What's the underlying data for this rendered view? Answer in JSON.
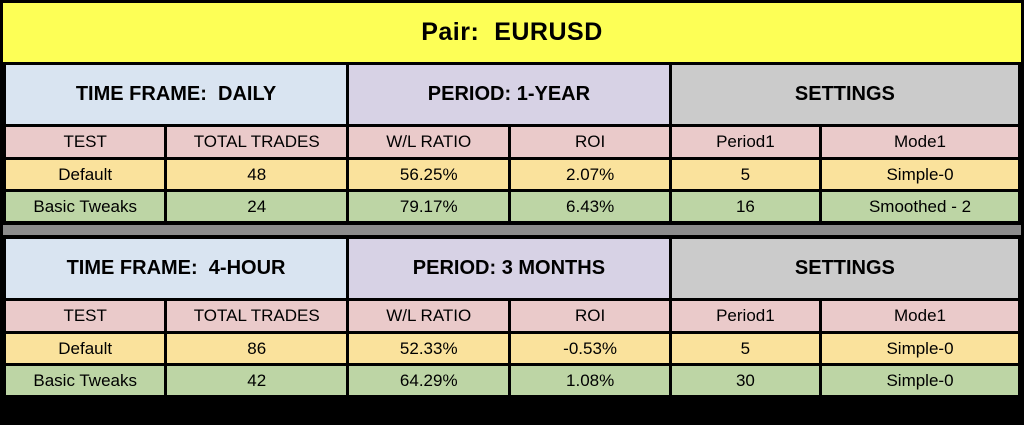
{
  "title": "Pair:  EURUSD",
  "colors": {
    "banner_bg": "#FDFF56",
    "time_frame_bg": "#D9E4F1",
    "period_bg": "#D7D2E5",
    "settings_bg": "#CBCBCB",
    "column_header_bg": "#EACACA",
    "default_row_bg": "#FAE29C",
    "tweaks_row_bg": "#BDD5A5",
    "divider_bg": "#8C8C8C",
    "border": "#000000"
  },
  "tables": [
    {
      "time_frame": "TIME FRAME:  DAILY",
      "period": "PERIOD: 1-YEAR",
      "settings": "SETTINGS",
      "columns": [
        "TEST",
        "TOTAL TRADES",
        "W/L RATIO",
        "ROI",
        "Period1",
        "Mode1"
      ],
      "rows": [
        [
          "Default",
          "48",
          "56.25%",
          "2.07%",
          "5",
          "Simple-0"
        ],
        [
          "Basic Tweaks",
          "24",
          "79.17%",
          "6.43%",
          "16",
          "Smoothed - 2"
        ]
      ]
    },
    {
      "time_frame": "TIME FRAME:  4-HOUR",
      "period": "PERIOD: 3 MONTHS",
      "settings": "SETTINGS",
      "columns": [
        "TEST",
        "TOTAL TRADES",
        "W/L RATIO",
        "ROI",
        "Period1",
        "Mode1"
      ],
      "rows": [
        [
          "Default",
          "86",
          "52.33%",
          "-0.53%",
          "5",
          "Simple-0"
        ],
        [
          "Basic Tweaks",
          "42",
          "64.29%",
          "1.08%",
          "30",
          "Simple-0"
        ]
      ]
    }
  ]
}
